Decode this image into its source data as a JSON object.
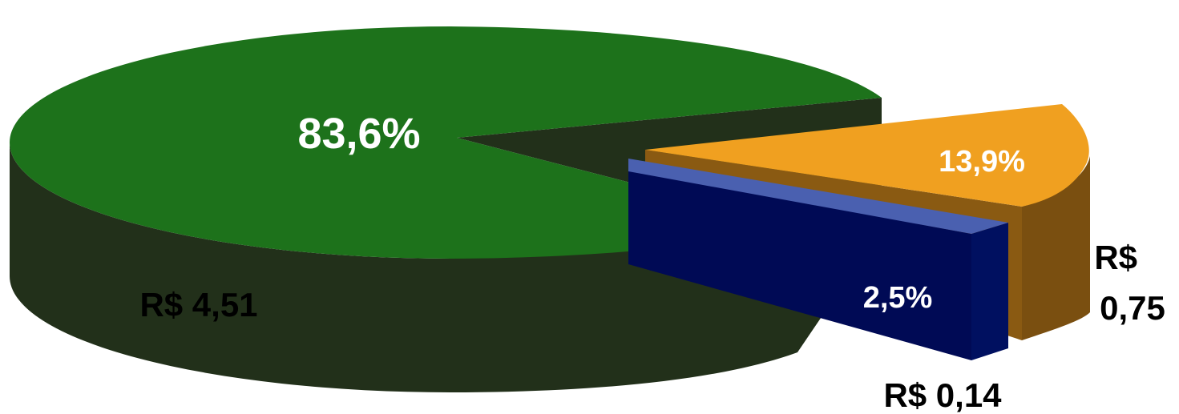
{
  "chart_data": {
    "type": "pie",
    "style": "3d-exploded",
    "slices": [
      {
        "name": "",
        "percent": 83.6,
        "percent_label": "83,6%",
        "value": 4.51,
        "value_label": "R$ 4,51",
        "color": "#1d721b",
        "side_color": "#22301a"
      },
      {
        "name": "",
        "percent": 13.9,
        "percent_label": "13,9%",
        "value": 0.75,
        "value_label": "R$ 0,75",
        "color": "#f0a020",
        "side_color": "#7a4f10"
      },
      {
        "name": "",
        "percent": 2.5,
        "percent_label": "2,5%",
        "value": 0.14,
        "value_label": "R$ 0,14",
        "color": "#4a60b0",
        "side_color": "#000a55"
      }
    ],
    "legend": "none"
  }
}
